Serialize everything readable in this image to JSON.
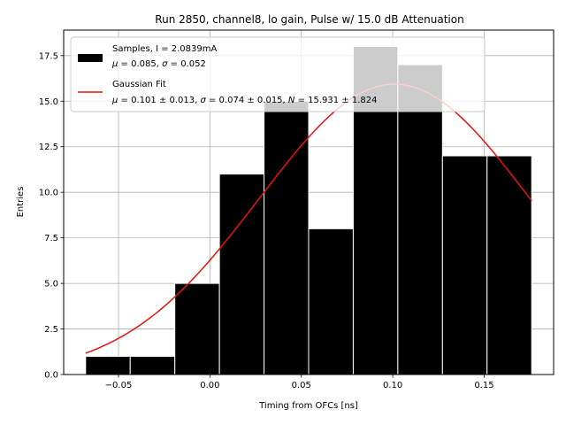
{
  "chart_data": {
    "type": "bar",
    "title": "Run 2850, channel8, lo gain, Pulse w/ 15.0 dB Attenuation",
    "xlabel": "Timing from OFCs [ns]",
    "ylabel": "Entries",
    "xlim": [
      -0.08,
      0.188
    ],
    "ylim": [
      0,
      18.9
    ],
    "xticks": [
      -0.05,
      0.0,
      0.05,
      0.1,
      0.15
    ],
    "xtick_labels": [
      "−0.05",
      "0.00",
      "0.05",
      "0.10",
      "0.15"
    ],
    "yticks": [
      0.0,
      2.5,
      5.0,
      7.5,
      10.0,
      12.5,
      15.0,
      17.5
    ],
    "ytick_labels": [
      "0.0",
      "2.5",
      "5.0",
      "7.5",
      "10.0",
      "12.5",
      "15.0",
      "17.5"
    ],
    "grid": true,
    "legend_placement": "upper-left",
    "histogram": {
      "bin_edges": [
        -0.068,
        -0.0436,
        -0.0192,
        0.0052,
        0.0296,
        0.054,
        0.0784,
        0.1028,
        0.1272,
        0.1516,
        0.176
      ],
      "counts": [
        1,
        1,
        5,
        11,
        15,
        8,
        18,
        17,
        12,
        12
      ],
      "color": "#000000",
      "edgecolor": "#ffffff"
    },
    "fit": {
      "mu": 0.101,
      "sigma": 0.074,
      "N": 15.931,
      "x_range": [
        -0.068,
        0.176
      ],
      "color": "#e8120c"
    },
    "legend": [
      {
        "line1": "Samples, I = 2.0839mA",
        "line2_parts": [
          "μ",
          " = 0.085, ",
          "σ",
          " = 0.052"
        ]
      },
      {
        "line1": "Gaussian Fit",
        "line2_parts": [
          "μ",
          " = 0.101 ± 0.013, ",
          "σ",
          " = 0.074 ± 0.015, ",
          "N",
          " = 15.931 ± 1.824"
        ]
      }
    ]
  }
}
